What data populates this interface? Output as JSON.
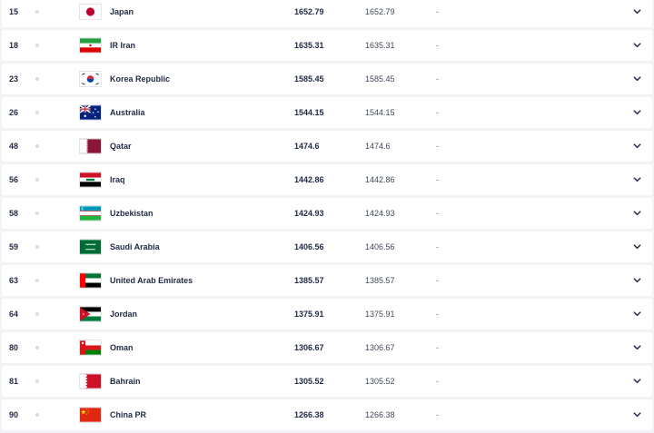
{
  "rows": [
    {
      "rank": "15",
      "team": "Japan",
      "points": "1652.79",
      "prev": "1652.79",
      "change": "-",
      "flag": "japan-flag-icon"
    },
    {
      "rank": "18",
      "team": "IR Iran",
      "points": "1635.31",
      "prev": "1635.31",
      "change": "-",
      "flag": "iran-flag-icon"
    },
    {
      "rank": "23",
      "team": "Korea Republic",
      "points": "1585.45",
      "prev": "1585.45",
      "change": "-",
      "flag": "korea-flag-icon"
    },
    {
      "rank": "26",
      "team": "Australia",
      "points": "1544.15",
      "prev": "1544.15",
      "change": "-",
      "flag": "australia-flag-icon"
    },
    {
      "rank": "48",
      "team": "Qatar",
      "points": "1474.6",
      "prev": "1474.6",
      "change": "-",
      "flag": "qatar-flag-icon"
    },
    {
      "rank": "56",
      "team": "Iraq",
      "points": "1442.86",
      "prev": "1442.86",
      "change": "-",
      "flag": "iraq-flag-icon"
    },
    {
      "rank": "58",
      "team": "Uzbekistan",
      "points": "1424.93",
      "prev": "1424.93",
      "change": "-",
      "flag": "uzbekistan-flag-icon"
    },
    {
      "rank": "59",
      "team": "Saudi Arabia",
      "points": "1406.56",
      "prev": "1406.56",
      "change": "-",
      "flag": "saudi-arabia-flag-icon"
    },
    {
      "rank": "63",
      "team": "United Arab Emirates",
      "points": "1385.57",
      "prev": "1385.57",
      "change": "-",
      "flag": "uae-flag-icon"
    },
    {
      "rank": "64",
      "team": "Jordan",
      "points": "1375.91",
      "prev": "1375.91",
      "change": "-",
      "flag": "jordan-flag-icon"
    },
    {
      "rank": "80",
      "team": "Oman",
      "points": "1306.67",
      "prev": "1306.67",
      "change": "-",
      "flag": "oman-flag-icon"
    },
    {
      "rank": "81",
      "team": "Bahrain",
      "points": "1305.52",
      "prev": "1305.52",
      "change": "-",
      "flag": "bahrain-flag-icon"
    },
    {
      "rank": "90",
      "team": "China PR",
      "points": "1266.38",
      "prev": "1266.38",
      "change": "-",
      "flag": "china-flag-icon"
    }
  ]
}
